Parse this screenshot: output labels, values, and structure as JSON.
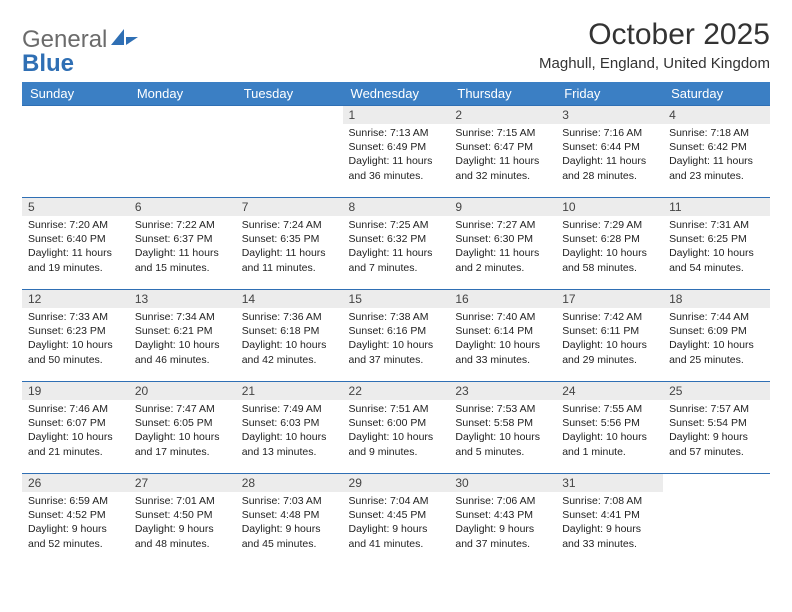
{
  "brand": {
    "part1": "General",
    "part2": "Blue"
  },
  "title": "October 2025",
  "location": "Maghull, England, United Kingdom",
  "header_color": "#3b7fc4",
  "header_border_color": "#2f6fb4",
  "daynum_bg": "#ececec",
  "dayNames": [
    "Sunday",
    "Monday",
    "Tuesday",
    "Wednesday",
    "Thursday",
    "Friday",
    "Saturday"
  ],
  "weeks": [
    [
      {
        "empty": true
      },
      {
        "empty": true
      },
      {
        "empty": true
      },
      {
        "num": "1",
        "sunrise": "7:13 AM",
        "sunset": "6:49 PM",
        "daylight": "11 hours and 36 minutes."
      },
      {
        "num": "2",
        "sunrise": "7:15 AM",
        "sunset": "6:47 PM",
        "daylight": "11 hours and 32 minutes."
      },
      {
        "num": "3",
        "sunrise": "7:16 AM",
        "sunset": "6:44 PM",
        "daylight": "11 hours and 28 minutes."
      },
      {
        "num": "4",
        "sunrise": "7:18 AM",
        "sunset": "6:42 PM",
        "daylight": "11 hours and 23 minutes."
      }
    ],
    [
      {
        "num": "5",
        "sunrise": "7:20 AM",
        "sunset": "6:40 PM",
        "daylight": "11 hours and 19 minutes."
      },
      {
        "num": "6",
        "sunrise": "7:22 AM",
        "sunset": "6:37 PM",
        "daylight": "11 hours and 15 minutes."
      },
      {
        "num": "7",
        "sunrise": "7:24 AM",
        "sunset": "6:35 PM",
        "daylight": "11 hours and 11 minutes."
      },
      {
        "num": "8",
        "sunrise": "7:25 AM",
        "sunset": "6:32 PM",
        "daylight": "11 hours and 7 minutes."
      },
      {
        "num": "9",
        "sunrise": "7:27 AM",
        "sunset": "6:30 PM",
        "daylight": "11 hours and 2 minutes."
      },
      {
        "num": "10",
        "sunrise": "7:29 AM",
        "sunset": "6:28 PM",
        "daylight": "10 hours and 58 minutes."
      },
      {
        "num": "11",
        "sunrise": "7:31 AM",
        "sunset": "6:25 PM",
        "daylight": "10 hours and 54 minutes."
      }
    ],
    [
      {
        "num": "12",
        "sunrise": "7:33 AM",
        "sunset": "6:23 PM",
        "daylight": "10 hours and 50 minutes."
      },
      {
        "num": "13",
        "sunrise": "7:34 AM",
        "sunset": "6:21 PM",
        "daylight": "10 hours and 46 minutes."
      },
      {
        "num": "14",
        "sunrise": "7:36 AM",
        "sunset": "6:18 PM",
        "daylight": "10 hours and 42 minutes."
      },
      {
        "num": "15",
        "sunrise": "7:38 AM",
        "sunset": "6:16 PM",
        "daylight": "10 hours and 37 minutes."
      },
      {
        "num": "16",
        "sunrise": "7:40 AM",
        "sunset": "6:14 PM",
        "daylight": "10 hours and 33 minutes."
      },
      {
        "num": "17",
        "sunrise": "7:42 AM",
        "sunset": "6:11 PM",
        "daylight": "10 hours and 29 minutes."
      },
      {
        "num": "18",
        "sunrise": "7:44 AM",
        "sunset": "6:09 PM",
        "daylight": "10 hours and 25 minutes."
      }
    ],
    [
      {
        "num": "19",
        "sunrise": "7:46 AM",
        "sunset": "6:07 PM",
        "daylight": "10 hours and 21 minutes."
      },
      {
        "num": "20",
        "sunrise": "7:47 AM",
        "sunset": "6:05 PM",
        "daylight": "10 hours and 17 minutes."
      },
      {
        "num": "21",
        "sunrise": "7:49 AM",
        "sunset": "6:03 PM",
        "daylight": "10 hours and 13 minutes."
      },
      {
        "num": "22",
        "sunrise": "7:51 AM",
        "sunset": "6:00 PM",
        "daylight": "10 hours and 9 minutes."
      },
      {
        "num": "23",
        "sunrise": "7:53 AM",
        "sunset": "5:58 PM",
        "daylight": "10 hours and 5 minutes."
      },
      {
        "num": "24",
        "sunrise": "7:55 AM",
        "sunset": "5:56 PM",
        "daylight": "10 hours and 1 minute."
      },
      {
        "num": "25",
        "sunrise": "7:57 AM",
        "sunset": "5:54 PM",
        "daylight": "9 hours and 57 minutes."
      }
    ],
    [
      {
        "num": "26",
        "sunrise": "6:59 AM",
        "sunset": "4:52 PM",
        "daylight": "9 hours and 52 minutes."
      },
      {
        "num": "27",
        "sunrise": "7:01 AM",
        "sunset": "4:50 PM",
        "daylight": "9 hours and 48 minutes."
      },
      {
        "num": "28",
        "sunrise": "7:03 AM",
        "sunset": "4:48 PM",
        "daylight": "9 hours and 45 minutes."
      },
      {
        "num": "29",
        "sunrise": "7:04 AM",
        "sunset": "4:45 PM",
        "daylight": "9 hours and 41 minutes."
      },
      {
        "num": "30",
        "sunrise": "7:06 AM",
        "sunset": "4:43 PM",
        "daylight": "9 hours and 37 minutes."
      },
      {
        "num": "31",
        "sunrise": "7:08 AM",
        "sunset": "4:41 PM",
        "daylight": "9 hours and 33 minutes."
      },
      {
        "empty": true
      }
    ]
  ],
  "labels": {
    "sunrise": "Sunrise:",
    "sunset": "Sunset:",
    "daylight": "Daylight:"
  }
}
